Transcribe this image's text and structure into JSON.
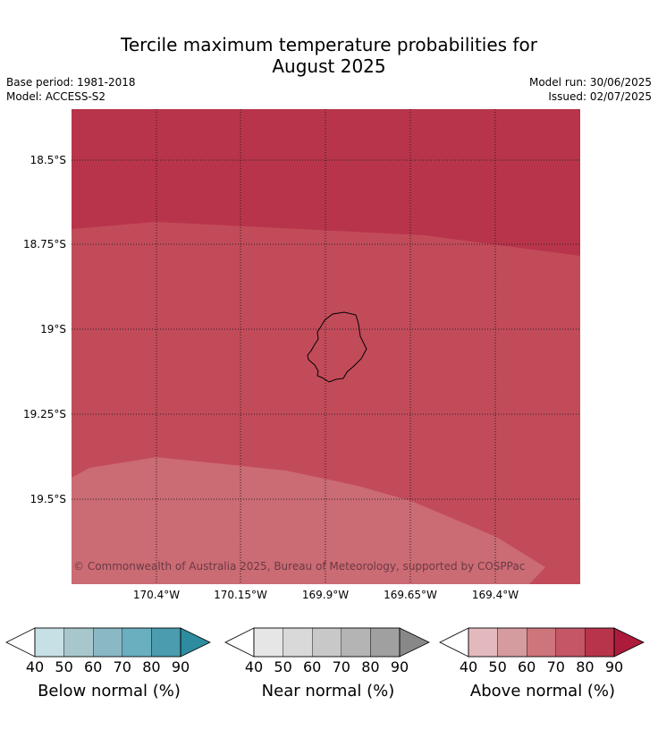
{
  "title_line1": "Tercile maximum temperature probabilities for",
  "title_line2": "August 2025",
  "meta": {
    "base_period": "Base period: 1981-2018",
    "model": "Model: ACCESS-S2",
    "model_run": "Model run: 30/06/2025",
    "issued": "Issued: 02/07/2025"
  },
  "map": {
    "lat_labels": [
      "18.5°S",
      "18.75°S",
      "19°S",
      "19.25°S",
      "19.5°S"
    ],
    "lon_labels": [
      "170.4°W",
      "170.15°W",
      "169.9°W",
      "169.65°W",
      "169.4°W"
    ],
    "zone_colors": {
      "above_90": "#b8344a",
      "above_80": "#c24b59",
      "above_70": "#cb6b74"
    },
    "gridline_style": "dotted",
    "copyright": "© Commonwealth of Australia 2025, Bureau of Meteorology, supported by COSPPac"
  },
  "colorbars": [
    {
      "name": "below",
      "label": "Below normal (%)",
      "ticks": [
        "40",
        "50",
        "60",
        "70",
        "80",
        "90"
      ],
      "colors": [
        "#ffffff",
        "#c7e0e6",
        "#a8c7cc",
        "#8ab8c4",
        "#6aafbf",
        "#4a9cae",
        "#2e8ca0"
      ]
    },
    {
      "name": "near",
      "label": "Near normal (%)",
      "ticks": [
        "40",
        "50",
        "60",
        "70",
        "80",
        "90"
      ],
      "colors": [
        "#ffffff",
        "#e6e6e6",
        "#d9d9d9",
        "#c8c8c8",
        "#b4b4b4",
        "#a0a0a0",
        "#888888"
      ]
    },
    {
      "name": "above",
      "label": "Above normal (%)",
      "ticks": [
        "40",
        "50",
        "60",
        "70",
        "80",
        "90"
      ],
      "colors": [
        "#ffffff",
        "#e3b9bd",
        "#d69b9f",
        "#cd757b",
        "#c45665",
        "#b8344a",
        "#ac1c3a"
      ]
    }
  ]
}
